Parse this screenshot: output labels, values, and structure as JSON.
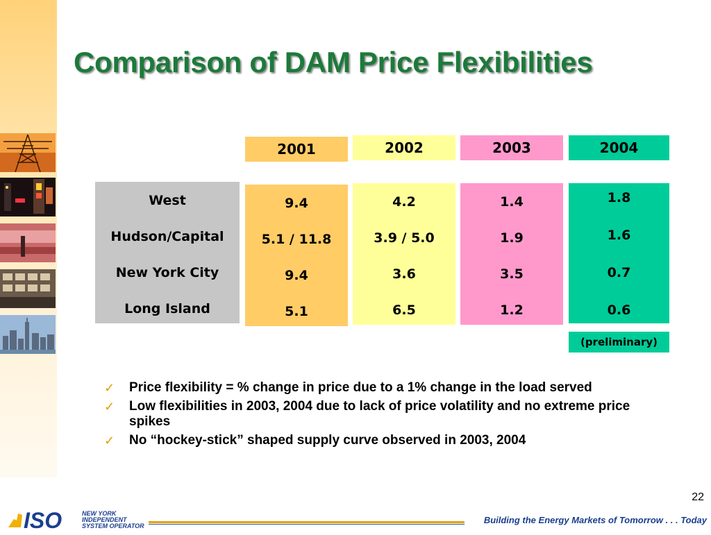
{
  "slide": {
    "title": "Comparison of DAM Price Flexibilities",
    "page_number": "22",
    "tagline": "Building the Energy Markets of Tomorrow . . . Today"
  },
  "logo": {
    "mark": "ISO",
    "lines": [
      "NEW YORK",
      "INDEPENDENT",
      "SYSTEM OPERATOR"
    ]
  },
  "colors": {
    "title": "#1c7a3a",
    "col_2001": "#ffcc66",
    "col_2002": "#ffff99",
    "col_2003": "#ff99cc",
    "col_2004": "#00cc99",
    "regions": "#c6c6c6",
    "check": "#e0a000"
  },
  "table": {
    "regions": [
      "West",
      "Hudson/Capital",
      "New York City",
      "Long Island"
    ],
    "columns": [
      {
        "year": "2001",
        "values": [
          "9.4",
          "5.1 / 11.8",
          "9.4",
          "5.1"
        ]
      },
      {
        "year": "2002",
        "values": [
          "4.2",
          "3.9 / 5.0",
          "3.6",
          "6.5"
        ]
      },
      {
        "year": "2003",
        "values": [
          "1.4",
          "1.9",
          "3.5",
          "1.2"
        ]
      },
      {
        "year": "2004",
        "values": [
          "1.8",
          "1.6",
          "0.7",
          "0.6"
        ]
      }
    ],
    "note_2004": "(preliminary)"
  },
  "bullets": [
    "Price flexibility = % change in price due to a 1% change in the load served",
    "Low flexibilities in 2003, 2004 due to lack of price volatility and no extreme price spikes",
    "No “hockey-stick” shaped supply curve observed in 2003, 2004"
  ],
  "icons": {
    "bullet": "checkmark-icon"
  }
}
